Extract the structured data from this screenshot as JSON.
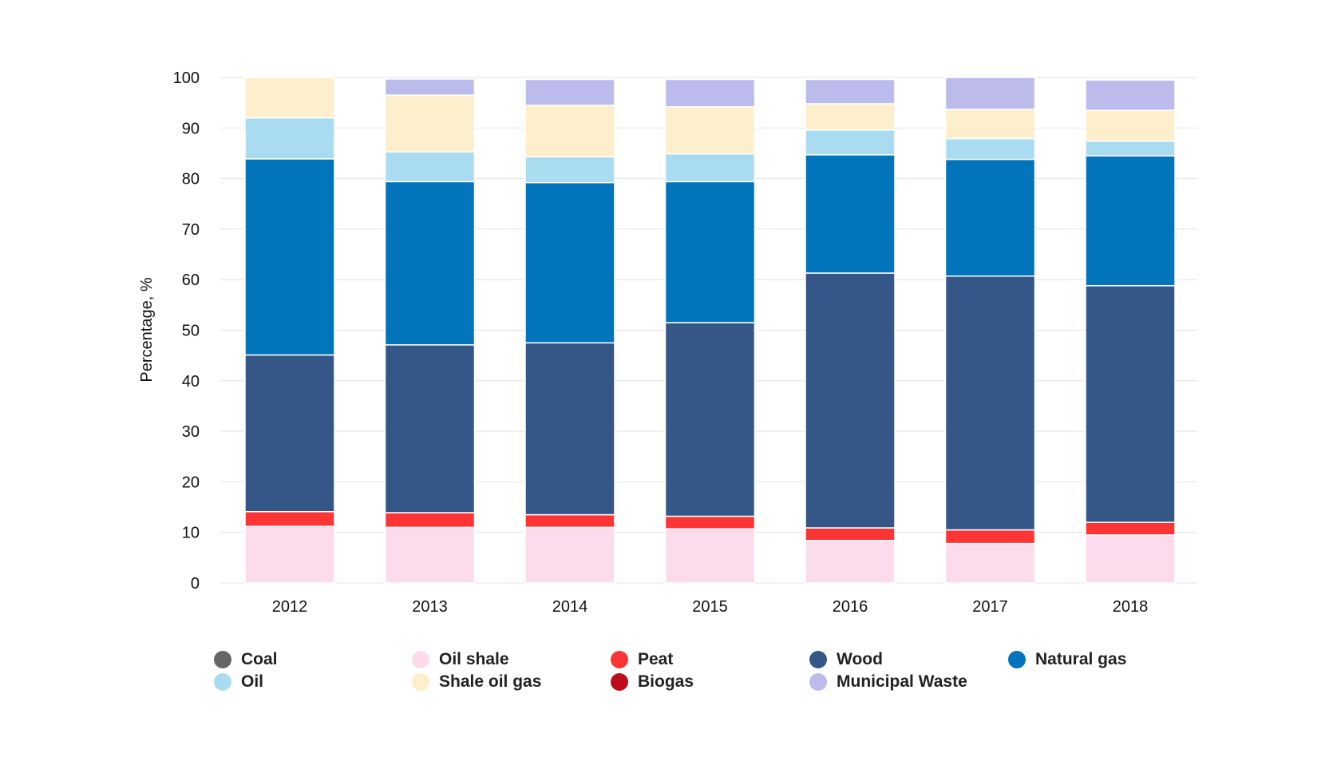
{
  "chart_data": {
    "type": "bar",
    "stacked": true,
    "ylabel": "Percentage, %",
    "xlabel": "",
    "ylim": [
      0,
      100
    ],
    "yticks": [
      0,
      10,
      20,
      30,
      40,
      50,
      60,
      70,
      80,
      90,
      100
    ],
    "grid": true,
    "legend_position": "bottom",
    "categories": [
      "2012",
      "2013",
      "2014",
      "2015",
      "2016",
      "2017",
      "2018"
    ],
    "series": [
      {
        "name": "Coal",
        "color": "#666666",
        "values": [
          0,
          0,
          0,
          0,
          0,
          0,
          0
        ]
      },
      {
        "name": "Oil shale",
        "color": "#fcdcec",
        "values": [
          11.2,
          11.0,
          11.0,
          10.7,
          8.4,
          7.8,
          9.5
        ]
      },
      {
        "name": "Peat",
        "color": "#fc3434",
        "values": [
          2.9,
          2.9,
          2.5,
          2.5,
          2.5,
          2.7,
          2.5
        ]
      },
      {
        "name": "Biogas",
        "color": "#bc0c1c",
        "values": [
          0,
          0,
          0,
          0,
          0,
          0,
          0
        ]
      },
      {
        "name": "Wood",
        "color": "#345788",
        "values": [
          31.0,
          33.2,
          34.0,
          38.3,
          50.4,
          50.2,
          46.8
        ]
      },
      {
        "name": "Natural gas",
        "color": "#0174bb",
        "values": [
          38.8,
          32.3,
          31.7,
          27.9,
          23.4,
          23.1,
          25.7
        ]
      },
      {
        "name": "Oil",
        "color": "#aadcf1",
        "values": [
          8.1,
          5.9,
          5.1,
          5.5,
          4.9,
          4.1,
          2.9
        ]
      },
      {
        "name": "Shale oil gas",
        "color": "#fdeecc",
        "values": [
          8.0,
          11.2,
          10.2,
          9.3,
          5.2,
          5.8,
          6.1
        ]
      },
      {
        "name": "Municipal Waste",
        "color": "#bbbbec",
        "values": [
          0,
          3.2,
          5.1,
          5.4,
          4.8,
          6.3,
          6.0
        ]
      }
    ],
    "legend_rows": [
      [
        "Coal",
        "Oil shale",
        "Peat",
        "Wood",
        "Natural gas"
      ],
      [
        "Oil",
        "Shale oil gas",
        "Biogas",
        "Municipal Waste"
      ]
    ]
  }
}
